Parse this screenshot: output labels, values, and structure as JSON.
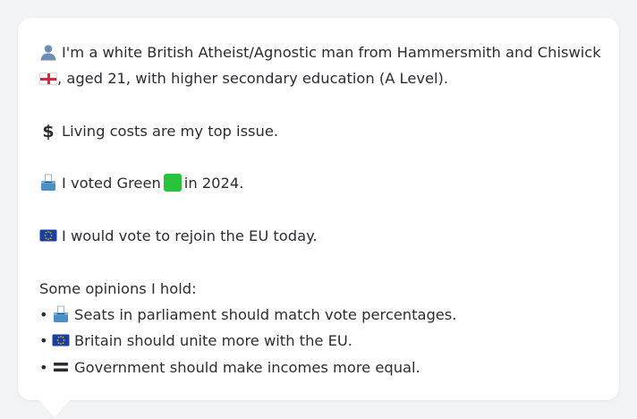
{
  "profile": {
    "intro_line1": "I'm a white British Atheist/Agnostic man from Hammersmith and Chiswick",
    "intro_line2": ", aged 21, with higher secondary education (A Level).",
    "top_issue": "Living costs are my top issue.",
    "vote_prefix": "I voted Green",
    "vote_suffix": "in 2024.",
    "eu_stance": "I would vote to rejoin the EU today.",
    "opinions_heading": "Some opinions I hold:",
    "opinions": [
      {
        "icon": "ballot-box-icon",
        "text": "Seats in parliament should match vote percentages."
      },
      {
        "icon": "eu-flag-icon",
        "text": "Britain should unite more with the EU."
      },
      {
        "icon": "equals-icon",
        "text": "Government should make incomes more equal."
      }
    ],
    "bullet_char": "•"
  },
  "colors": {
    "background": "#f2f3f5",
    "bubble": "#ffffff",
    "text": "#2b2d31",
    "green_party": "#28c23b",
    "eu_blue": "#1a3f9e",
    "eu_star": "#f5d000"
  }
}
